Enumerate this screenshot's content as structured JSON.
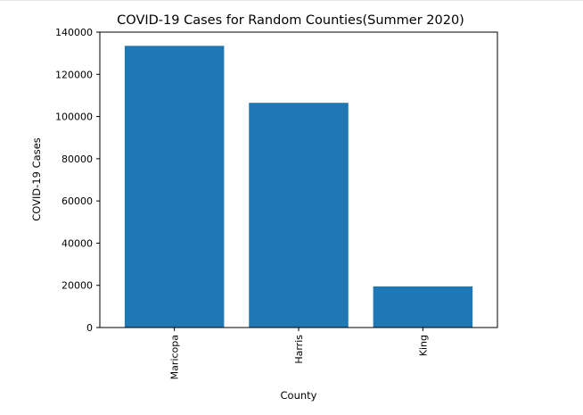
{
  "chart_data": {
    "type": "bar",
    "title": "COVID-19 Cases for Random Counties(Summer 2020)",
    "xlabel": "County",
    "ylabel": "COVID-19 Cases",
    "categories": [
      "Maricopa",
      "Harris",
      "King"
    ],
    "values": [
      133500,
      106500,
      19500
    ],
    "ylim": [
      0,
      140000
    ],
    "yticks": [
      0,
      20000,
      40000,
      60000,
      80000,
      100000,
      120000,
      140000
    ],
    "bar_color": "#1f77b4",
    "grid": false,
    "legend": "none"
  }
}
